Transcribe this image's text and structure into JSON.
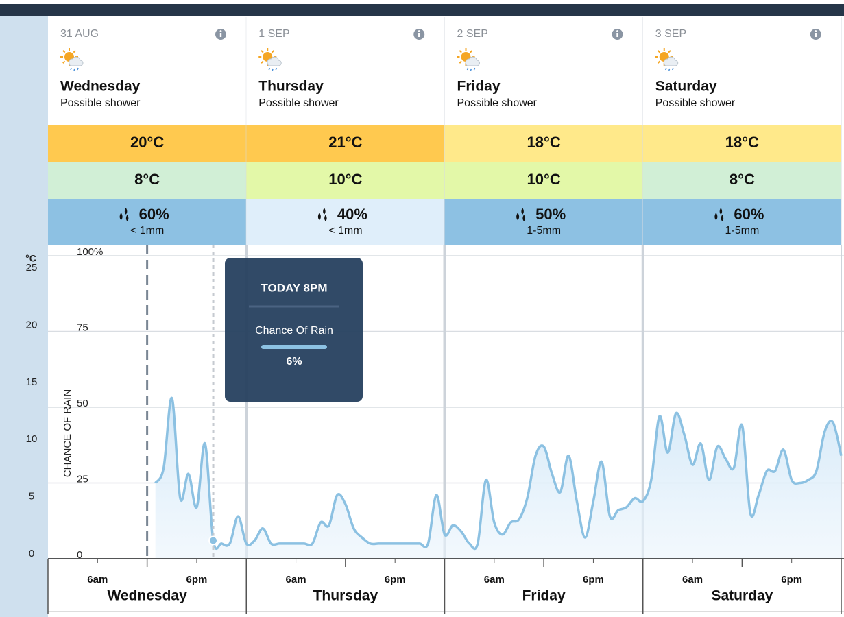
{
  "days": [
    {
      "date": "31 AUG",
      "name": "Wednesday",
      "summary": "Possible shower",
      "max": "20°C",
      "min": "8°C",
      "rain_chance": "60%",
      "rain_amount": "< 1mm",
      "max_color": "#ffc94f",
      "min_color": "#d1efd6",
      "rain_color": "#8dc1e3"
    },
    {
      "date": "1 SEP",
      "name": "Thursday",
      "summary": "Possible shower",
      "max": "21°C",
      "min": "10°C",
      "rain_chance": "40%",
      "rain_amount": "< 1mm",
      "max_color": "#ffc94f",
      "min_color": "#e3f8a8",
      "rain_color": "#dfeefa"
    },
    {
      "date": "2 SEP",
      "name": "Friday",
      "summary": "Possible shower",
      "max": "18°C",
      "min": "10°C",
      "rain_chance": "50%",
      "rain_amount": "1-5mm",
      "max_color": "#ffe98a",
      "min_color": "#e3f8a8",
      "rain_color": "#8dc1e3"
    },
    {
      "date": "3 SEP",
      "name": "Saturday",
      "summary": "Possible shower",
      "max": "18°C",
      "min": "8°C",
      "rain_chance": "60%",
      "rain_amount": "1-5mm",
      "max_color": "#ffe98a",
      "min_color": "#d1efd6",
      "rain_color": "#8dc1e3"
    }
  ],
  "chart_data": {
    "type": "line",
    "y_label": "CHANCE OF RAIN",
    "y2_label": "°C",
    "x": [
      13,
      14,
      15,
      16,
      17,
      18,
      19,
      20,
      21,
      22,
      23,
      24,
      25,
      26,
      27,
      28,
      29,
      30,
      31,
      32,
      33,
      34,
      35,
      36,
      37,
      38,
      39,
      40,
      41,
      42,
      43,
      44,
      45,
      46,
      47,
      48,
      49,
      50,
      51,
      52,
      53,
      54,
      55,
      56,
      57,
      58,
      59,
      60,
      61,
      62,
      63,
      64,
      65,
      66,
      67,
      68,
      69,
      70,
      71,
      72,
      73,
      74,
      75,
      76,
      77,
      78,
      79,
      80,
      81,
      82,
      83,
      84,
      85,
      86,
      87,
      88,
      89,
      90,
      91,
      92,
      93,
      94,
      95,
      96
    ],
    "series": [
      {
        "name": "Chance Of Rain",
        "color": "#8cc1e2",
        "values": [
          25,
          30,
          53,
          20,
          28,
          17,
          38,
          6,
          5,
          5,
          14,
          5,
          6,
          10,
          5,
          5,
          5,
          5,
          5,
          5,
          12,
          11,
          21,
          18,
          10,
          7,
          5,
          5,
          5,
          5,
          5,
          5,
          5,
          5,
          21,
          8,
          11,
          9,
          5,
          5,
          26,
          12,
          8,
          12,
          13,
          20,
          34,
          37,
          28,
          22,
          34,
          19,
          7,
          19,
          32,
          14,
          16,
          17,
          20,
          19,
          26,
          47,
          35,
          48,
          41,
          31,
          38,
          26,
          37,
          33,
          30,
          44,
          15,
          21,
          29,
          29,
          36,
          26,
          25,
          26,
          29,
          42,
          45,
          34
        ]
      }
    ],
    "xlim": [
      0,
      96
    ],
    "ylim": [
      0,
      100
    ],
    "yticks": [
      0,
      25,
      50,
      75,
      {
        "value": 100,
        "label": "100%"
      }
    ],
    "y2lim": [
      0,
      26.5
    ],
    "y2ticks": [
      0,
      5,
      10,
      15,
      20,
      25
    ],
    "xticks": [
      {
        "value": 6,
        "label": "6am"
      },
      {
        "value": 18,
        "label": "6pm"
      },
      {
        "value": 30,
        "label": "6am"
      },
      {
        "value": 42,
        "label": "6pm"
      },
      {
        "value": 54,
        "label": "6am"
      },
      {
        "value": 66,
        "label": "6pm"
      },
      {
        "value": 78,
        "label": "6am"
      },
      {
        "value": 90,
        "label": "6pm"
      }
    ],
    "minor_xticks": [
      12,
      36,
      60,
      84
    ],
    "markers": [
      {
        "x": 12,
        "style": "dashed"
      },
      {
        "x": 20,
        "style": "dotted"
      }
    ],
    "tooltip": {
      "title": "TODAY 8PM",
      "value_label": "6%"
    },
    "grid": true
  }
}
